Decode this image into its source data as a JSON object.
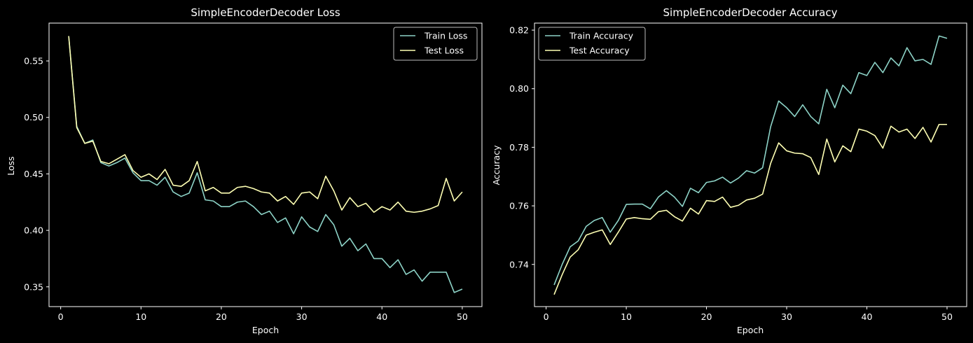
{
  "colors": {
    "background": "#000000",
    "axes": "#ffffff",
    "train": "#8dd3c7",
    "test": "#feffb3",
    "legend_border": "#bbbbbb"
  },
  "chart_data": [
    {
      "type": "line",
      "title": "SimpleEncoderDecoder Loss",
      "xlabel": "Epoch",
      "ylabel": "Loss",
      "xlim": [
        -1.45,
        52.45
      ],
      "ylim": [
        0.3325,
        0.5835
      ],
      "xticks": [
        0,
        10,
        20,
        30,
        40,
        50
      ],
      "yticks": [
        0.35,
        0.4,
        0.45,
        0.5,
        0.55
      ],
      "xtick_labels": [
        "0",
        "10",
        "20",
        "30",
        "40",
        "50"
      ],
      "ytick_labels": [
        "0.35",
        "0.40",
        "0.45",
        "0.50",
        "0.55"
      ],
      "grid": false,
      "legend": "upper right",
      "x": [
        1,
        2,
        3,
        4,
        5,
        6,
        7,
        8,
        9,
        10,
        11,
        12,
        13,
        14,
        15,
        16,
        17,
        18,
        19,
        20,
        21,
        22,
        23,
        24,
        25,
        26,
        27,
        28,
        29,
        30,
        31,
        32,
        33,
        34,
        35,
        36,
        37,
        38,
        39,
        40,
        41,
        42,
        43,
        44,
        45,
        46,
        47,
        48,
        49,
        50
      ],
      "series": [
        {
          "name": "Train Loss",
          "color": "#8dd3c7",
          "values": [
            0.572,
            0.492,
            0.477,
            0.48,
            0.46,
            0.457,
            0.46,
            0.464,
            0.451,
            0.444,
            0.444,
            0.44,
            0.447,
            0.434,
            0.43,
            0.433,
            0.451,
            0.427,
            0.426,
            0.421,
            0.421,
            0.425,
            0.426,
            0.421,
            0.414,
            0.417,
            0.407,
            0.411,
            0.397,
            0.412,
            0.403,
            0.399,
            0.414,
            0.405,
            0.386,
            0.393,
            0.382,
            0.388,
            0.375,
            0.375,
            0.367,
            0.374,
            0.361,
            0.365,
            0.355,
            0.363,
            0.363,
            0.363,
            0.345,
            0.348
          ]
        },
        {
          "name": "Test Loss",
          "color": "#feffb3",
          "values": [
            0.572,
            0.491,
            0.477,
            0.479,
            0.461,
            0.459,
            0.463,
            0.467,
            0.453,
            0.447,
            0.45,
            0.445,
            0.454,
            0.44,
            0.439,
            0.444,
            0.461,
            0.435,
            0.438,
            0.433,
            0.433,
            0.438,
            0.439,
            0.437,
            0.434,
            0.433,
            0.426,
            0.43,
            0.423,
            0.433,
            0.434,
            0.428,
            0.448,
            0.435,
            0.418,
            0.429,
            0.421,
            0.424,
            0.416,
            0.421,
            0.418,
            0.425,
            0.417,
            0.416,
            0.417,
            0.419,
            0.422,
            0.446,
            0.426,
            0.434
          ]
        }
      ]
    },
    {
      "type": "line",
      "title": "SimpleEncoderDecoder Accuracy",
      "xlabel": "Epoch",
      "ylabel": "Accuracy",
      "xlim": [
        -1.45,
        52.45
      ],
      "ylim": [
        0.7256,
        0.8224
      ],
      "xticks": [
        0,
        10,
        20,
        30,
        40,
        50
      ],
      "yticks": [
        0.74,
        0.76,
        0.78,
        0.8,
        0.82
      ],
      "xtick_labels": [
        "0",
        "10",
        "20",
        "30",
        "40",
        "50"
      ],
      "ytick_labels": [
        "0.74",
        "0.76",
        "0.78",
        "0.80",
        "0.82"
      ],
      "grid": false,
      "legend": "upper left",
      "x": [
        1,
        2,
        3,
        4,
        5,
        6,
        7,
        8,
        9,
        10,
        11,
        12,
        13,
        14,
        15,
        16,
        17,
        18,
        19,
        20,
        21,
        22,
        23,
        24,
        25,
        26,
        27,
        28,
        29,
        30,
        31,
        32,
        33,
        34,
        35,
        36,
        37,
        38,
        39,
        40,
        41,
        42,
        43,
        44,
        45,
        46,
        47,
        48,
        49,
        50
      ],
      "series": [
        {
          "name": "Train Accuracy",
          "color": "#8dd3c7",
          "values": [
            0.733,
            0.74,
            0.746,
            0.748,
            0.753,
            0.755,
            0.756,
            0.751,
            0.755,
            0.7605,
            0.7606,
            0.7606,
            0.759,
            0.763,
            0.7652,
            0.763,
            0.7598,
            0.766,
            0.7645,
            0.768,
            0.7685,
            0.7698,
            0.7678,
            0.7695,
            0.772,
            0.7712,
            0.773,
            0.787,
            0.7958,
            0.7935,
            0.7905,
            0.7945,
            0.7905,
            0.788,
            0.7998,
            0.7935,
            0.8012,
            0.7983,
            0.8055,
            0.8045,
            0.809,
            0.8055,
            0.8105,
            0.8078,
            0.814,
            0.8095,
            0.81,
            0.8083,
            0.818,
            0.8172
          ]
        },
        {
          "name": "Test Accuracy",
          "color": "#feffb3",
          "values": [
            0.7297,
            0.7365,
            0.7425,
            0.745,
            0.75,
            0.751,
            0.7518,
            0.7468,
            0.751,
            0.7555,
            0.756,
            0.7556,
            0.7554,
            0.758,
            0.7585,
            0.7563,
            0.7548,
            0.7592,
            0.7572,
            0.7618,
            0.7615,
            0.763,
            0.7595,
            0.7602,
            0.762,
            0.7626,
            0.764,
            0.7745,
            0.7815,
            0.7788,
            0.778,
            0.7778,
            0.7765,
            0.7707,
            0.7828,
            0.775,
            0.7805,
            0.7785,
            0.7862,
            0.7855,
            0.784,
            0.7797,
            0.7872,
            0.7852,
            0.7862,
            0.783,
            0.7868,
            0.7818,
            0.7878,
            0.7878
          ]
        }
      ]
    }
  ]
}
